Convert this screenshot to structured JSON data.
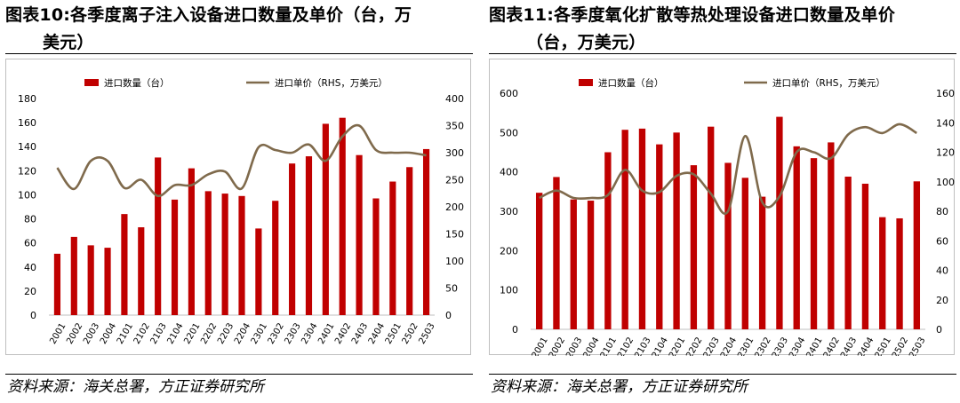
{
  "colors": {
    "bar": "#c00000",
    "line": "#7f6a4c",
    "axis": "#bfbfbf"
  },
  "panels": [
    {
      "title_line1": "图表10:各季度离子注入设备进口数量及单价（台，万",
      "title_line2": "美元）",
      "source": "资料来源：海关总署，方正证券研究所",
      "chart_data": {
        "type": "bar+line",
        "legend": {
          "bar": "进口数量（台）",
          "line": "进口单价（RHS，万美元）"
        },
        "categories": [
          "20Q1",
          "20Q2",
          "20Q3",
          "20Q4",
          "21Q1",
          "21Q2",
          "21Q3",
          "21Q4",
          "22Q1",
          "22Q2",
          "22Q3",
          "22Q4",
          "23Q1",
          "23Q2",
          "23Q3",
          "23Q4",
          "24Q1",
          "24Q2",
          "24Q3",
          "24Q4",
          "25Q1",
          "25Q2",
          "25Q3"
        ],
        "category_labels": [
          "2001",
          "2002",
          "2003",
          "2004",
          "2101",
          "2102",
          "2103",
          "2104",
          "2201",
          "2202",
          "2203",
          "2204",
          "2301",
          "2302",
          "2303",
          "2304",
          "2401",
          "2402",
          "2403",
          "2404",
          "2501",
          "2502",
          "2503"
        ],
        "bar_values": [
          51,
          65,
          58,
          56,
          84,
          73,
          131,
          96,
          122,
          103,
          101,
          99,
          72,
          95,
          126,
          132,
          159,
          164,
          133,
          97,
          111,
          123,
          138
        ],
        "line_values": [
          272,
          233,
          285,
          285,
          235,
          250,
          220,
          240,
          240,
          260,
          265,
          234,
          310,
          305,
          300,
          315,
          285,
          330,
          350,
          305,
          300,
          300,
          295
        ],
        "y_left": {
          "min": 0,
          "max": 180,
          "step": 20
        },
        "y_right": {
          "min": 0,
          "max": 400,
          "step": 50
        },
        "xlabel": "",
        "ylabel_left": "",
        "ylabel_right": ""
      }
    },
    {
      "title_line1": "图表11:各季度氧化扩散等热处理设备进口数量及单价",
      "title_line2": "（台，万美元）",
      "source": "资料来源：海关总署，方正证券研究所",
      "chart_data": {
        "type": "bar+line",
        "legend": {
          "bar": "进口数量（台）",
          "line": "进口单价（RHS，万美元）"
        },
        "categories": [
          "20Q1",
          "20Q2",
          "20Q3",
          "20Q4",
          "21Q1",
          "21Q2",
          "21Q3",
          "21Q4",
          "22Q1",
          "22Q2",
          "22Q3",
          "22Q4",
          "23Q1",
          "23Q2",
          "23Q3",
          "23Q4",
          "24Q1",
          "24Q2",
          "24Q3",
          "24Q4",
          "25Q1",
          "25Q2",
          "25Q3"
        ],
        "category_labels": [
          "2001",
          "2002",
          "2003",
          "2004",
          "2101",
          "2102",
          "2103",
          "2104",
          "2201",
          "2202",
          "2203",
          "2204",
          "2301",
          "2302",
          "2303",
          "2304",
          "2401",
          "2402",
          "2403",
          "2404",
          "2501",
          "2502",
          "2503"
        ],
        "bar_values": [
          347,
          387,
          330,
          327,
          450,
          507,
          510,
          470,
          500,
          417,
          515,
          423,
          385,
          337,
          540,
          465,
          435,
          475,
          388,
          370,
          285,
          282,
          376
        ],
        "line_values": [
          89,
          94,
          89,
          89,
          91,
          108,
          94,
          93,
          104,
          105,
          92,
          80,
          131,
          86,
          90,
          120,
          120,
          116,
          132,
          137,
          133,
          139,
          133
        ],
        "y_left": {
          "min": 0,
          "max": 600,
          "step": 100
        },
        "y_right": {
          "min": 0,
          "max": 160,
          "step": 20
        },
        "xlabel": "",
        "ylabel_left": "",
        "ylabel_right": ""
      }
    }
  ]
}
